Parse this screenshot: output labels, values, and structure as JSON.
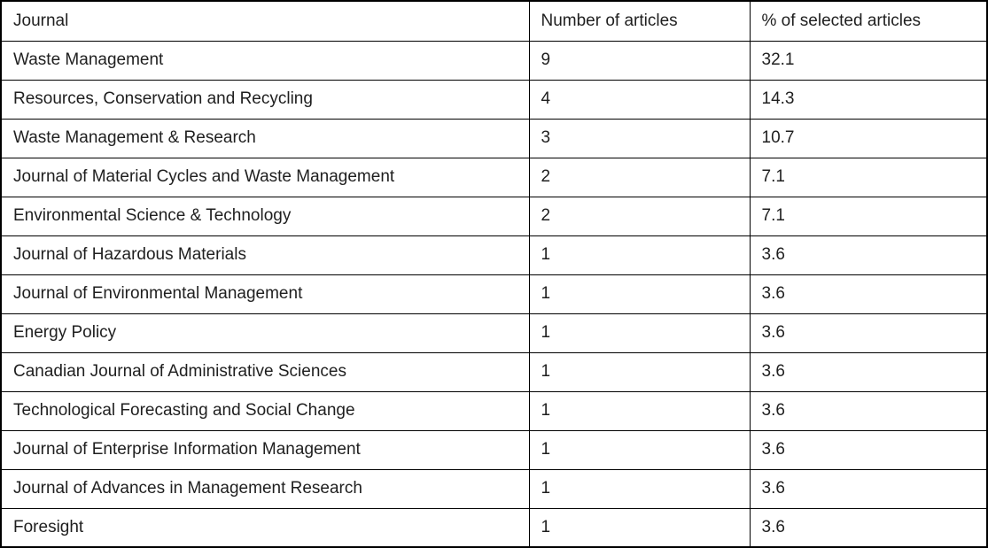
{
  "page": {
    "background_color": "#ffffff",
    "border_color": "#000000",
    "text_color": "#1f1f1f"
  },
  "table": {
    "columns": [
      "Journal",
      "Number of articles",
      "% of selected articles"
    ],
    "rows": [
      [
        "Waste Management",
        "9",
        "32.1"
      ],
      [
        "Resources, Conservation and Recycling",
        "4",
        "14.3"
      ],
      [
        "Waste Management & Research",
        "3",
        "10.7"
      ],
      [
        "Journal of Material Cycles and Waste Management",
        "2",
        "7.1"
      ],
      [
        "Environmental Science & Technology",
        "2",
        "7.1"
      ],
      [
        "Journal of Hazardous Materials",
        "1",
        "3.6"
      ],
      [
        "Journal of Environmental Management",
        "1",
        "3.6"
      ],
      [
        "Energy Policy",
        "1",
        "3.6"
      ],
      [
        "Canadian Journal of Administrative Sciences",
        "1",
        "3.6"
      ],
      [
        "Technological Forecasting and Social Change",
        "1",
        "3.6"
      ],
      [
        "Journal of Enterprise Information Management",
        "1",
        "3.6"
      ],
      [
        "Journal of Advances in Management Research",
        "1",
        "3.6"
      ],
      [
        "Foresight",
        "1",
        "3.6"
      ]
    ]
  }
}
